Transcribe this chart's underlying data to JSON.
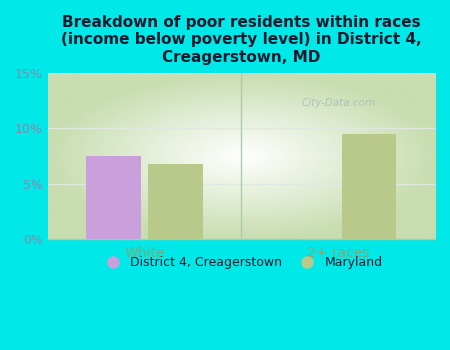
{
  "title": "Breakdown of poor residents within races\n(income below poverty level) in District 4,\nCreagerstown, MD",
  "categories": [
    "White",
    "2+ races"
  ],
  "district_values": [
    7.5,
    null
  ],
  "maryland_values": [
    6.8,
    9.5
  ],
  "district_color": "#c9a0dc",
  "maryland_color": "#b8c98a",
  "bar_width": 0.28,
  "ylim": [
    0,
    15
  ],
  "yticks": [
    0,
    5,
    10,
    15
  ],
  "yticklabels": [
    "0%",
    "5%",
    "10%",
    "15%"
  ],
  "background_color": "#00e8e8",
  "plot_bg_gradient_bottom": "#c8ddb0",
  "plot_bg_gradient_top": "#f0f8ee",
  "plot_bg_center": "#ffffff",
  "grid_color": "#e0e8e0",
  "title_color": "#1a1a2e",
  "axis_label_color": "#7aaa7a",
  "tick_label_color": "#8888aa",
  "legend_label1": "District 4, Creagerstown",
  "legend_label2": "Maryland",
  "watermark": "City-Data.com",
  "separator_color": "#aaccaa"
}
